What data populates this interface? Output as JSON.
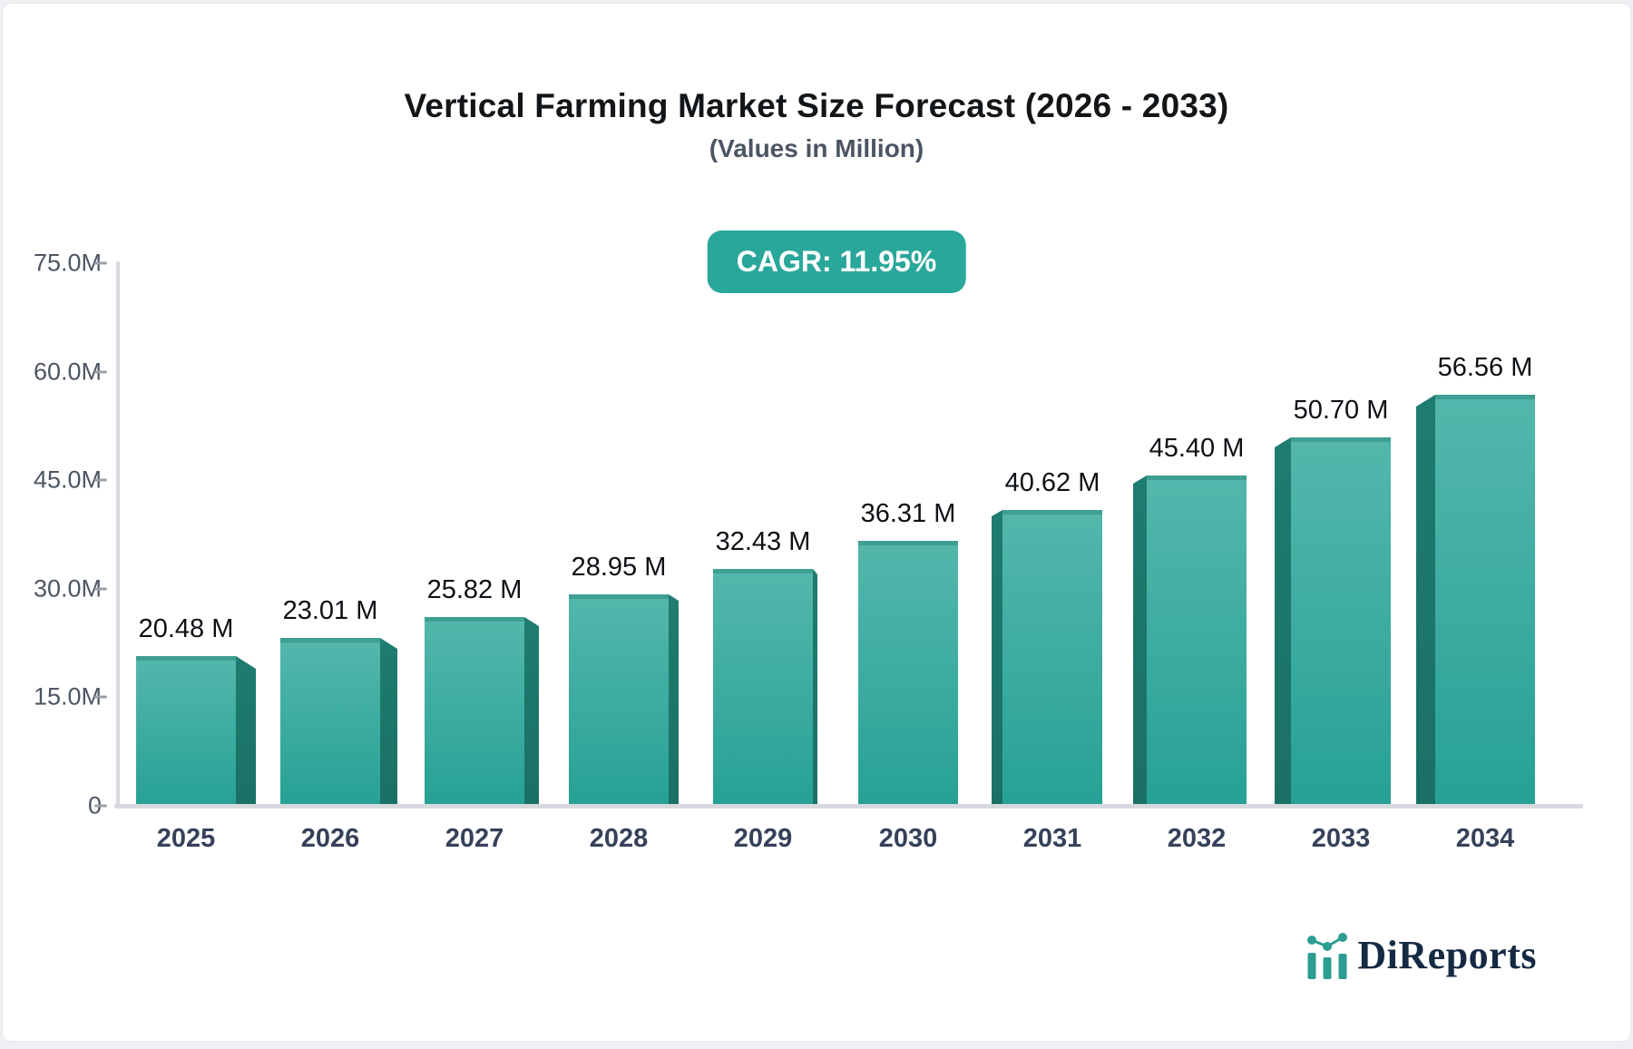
{
  "header": {
    "title": "Vertical Farming Market Size Forecast (2026 - 2033)",
    "subtitle": "(Values in Million)",
    "cagr_badge": "CAGR: 11.95%"
  },
  "chart_data": {
    "type": "bar",
    "title": "Vertical Farming Market Size Forecast (2026 - 2033)",
    "subtitle": "(Values in Million)",
    "unit": "Million",
    "cagr_percent": 11.95,
    "categories": [
      "2025",
      "2026",
      "2027",
      "2028",
      "2029",
      "2030",
      "2031",
      "2032",
      "2033",
      "2034"
    ],
    "values": [
      20.48,
      23.01,
      25.82,
      28.95,
      32.43,
      36.31,
      40.62,
      45.4,
      50.7,
      56.56
    ],
    "value_labels": [
      "20.48 M",
      "23.01 M",
      "25.82 M",
      "28.95 M",
      "32.43 M",
      "36.31 M",
      "40.62 M",
      "45.40 M",
      "50.70 M",
      "56.56 M"
    ],
    "ylim": [
      0,
      75
    ],
    "yticks": [
      {
        "label": "0",
        "value": 0
      },
      {
        "label": "15.0M",
        "value": 15
      },
      {
        "label": "30.0M",
        "value": 30
      },
      {
        "label": "45.0M",
        "value": 45
      },
      {
        "label": "60.0M",
        "value": 60
      },
      {
        "label": "75.0M",
        "value": 75
      }
    ],
    "grid": false,
    "legend": "none",
    "colors": {
      "bar_face_top": "#54b7ac",
      "bar_face_bottom": "#27a195",
      "bar_cap": "#3f9f93",
      "bar_side": "#1e7c70",
      "axis_line": "#d6d9de",
      "tick_dash": "#9aa1ab",
      "ytick_label": "#4d5663",
      "xtick_label": "#36415a",
      "value_label": "#0d1116",
      "badge_bg": "#2aa79b",
      "badge_text": "#ffffff"
    }
  },
  "branding": {
    "logo_text": "DiReports",
    "logo_icon": "mini-bar-chart-logo-icon",
    "logo_text_color": "#152a42",
    "logo_icon_color": "#2b9d92"
  }
}
